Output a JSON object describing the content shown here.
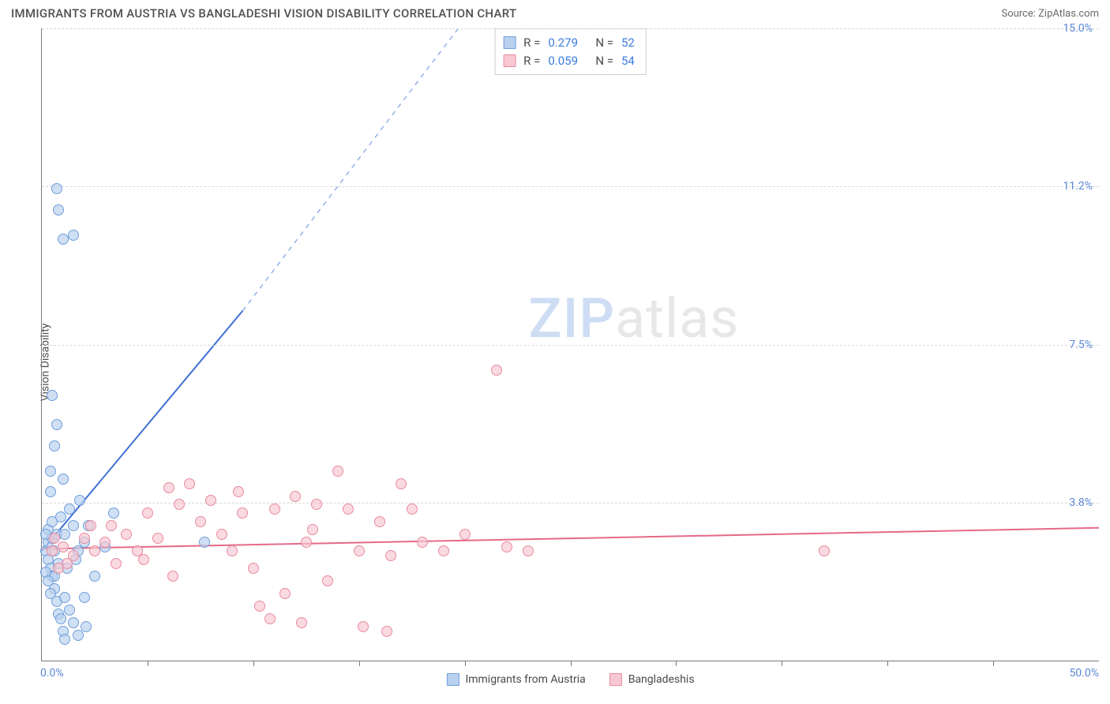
{
  "header": {
    "title": "IMMIGRANTS FROM AUSTRIA VS BANGLADESHI VISION DISABILITY CORRELATION CHART",
    "source": "Source: ZipAtlas.com"
  },
  "chart": {
    "type": "scatter",
    "ylabel": "Vision Disability",
    "watermark_bold": "ZIP",
    "watermark_rest": "atlas",
    "xlim": [
      0,
      50
    ],
    "ylim": [
      0,
      15
    ],
    "x_origin_label": "0.0%",
    "x_max_label": "50.0%",
    "y_ticks": [
      {
        "v": 3.75,
        "label": "3.8%"
      },
      {
        "v": 7.5,
        "label": "7.5%"
      },
      {
        "v": 11.25,
        "label": "11.2%"
      },
      {
        "v": 15.0,
        "label": "15.0%"
      }
    ],
    "x_tick_step": 5,
    "grid_color": "#d9d9d9",
    "background_color": "#ffffff",
    "series": [
      {
        "name": "Immigrants from Austria",
        "fill": "#b9d1ee",
        "stroke": "#6f9edb",
        "trend_color": "#3d6fd6",
        "trend": {
          "x1": 0,
          "y1": 2.6,
          "x2": 9.5,
          "y2": 8.3,
          "dash_to_x": 19.7,
          "dash_to_y": 15.0
        },
        "r_value": "0.279",
        "n_value": "52",
        "points": [
          [
            0.2,
            2.6
          ],
          [
            0.3,
            2.4
          ],
          [
            0.3,
            2.8
          ],
          [
            0.4,
            2.2
          ],
          [
            0.5,
            2.0
          ],
          [
            0.3,
            3.1
          ],
          [
            0.5,
            2.9
          ],
          [
            0.6,
            1.7
          ],
          [
            0.6,
            2.0
          ],
          [
            0.7,
            1.4
          ],
          [
            0.8,
            1.1
          ],
          [
            0.9,
            1.0
          ],
          [
            0.5,
            3.3
          ],
          [
            0.4,
            4.0
          ],
          [
            0.7,
            3.0
          ],
          [
            0.9,
            3.4
          ],
          [
            1.1,
            3.0
          ],
          [
            1.3,
            3.6
          ],
          [
            1.5,
            3.2
          ],
          [
            1.1,
            1.5
          ],
          [
            1.3,
            1.2
          ],
          [
            1.5,
            0.9
          ],
          [
            1.7,
            2.6
          ],
          [
            1.8,
            3.8
          ],
          [
            2.0,
            2.8
          ],
          [
            0.4,
            4.5
          ],
          [
            0.6,
            5.1
          ],
          [
            0.7,
            5.6
          ],
          [
            0.5,
            6.3
          ],
          [
            1.0,
            4.3
          ],
          [
            1.0,
            0.7
          ],
          [
            1.1,
            0.5
          ],
          [
            1.7,
            0.6
          ],
          [
            2.1,
            0.8
          ],
          [
            2.0,
            1.5
          ],
          [
            2.5,
            2.0
          ],
          [
            3.0,
            2.7
          ],
          [
            3.4,
            3.5
          ],
          [
            7.7,
            2.8
          ],
          [
            1.0,
            10.0
          ],
          [
            1.5,
            10.1
          ],
          [
            0.8,
            10.7
          ],
          [
            0.7,
            11.2
          ],
          [
            0.2,
            2.1
          ],
          [
            0.3,
            1.9
          ],
          [
            0.4,
            1.6
          ],
          [
            0.2,
            3.0
          ],
          [
            0.6,
            2.6
          ],
          [
            0.8,
            2.3
          ],
          [
            1.2,
            2.2
          ],
          [
            1.6,
            2.4
          ],
          [
            2.2,
            3.2
          ]
        ]
      },
      {
        "name": "Bangladeshis",
        "fill": "#f7c8d1",
        "stroke": "#e88aa0",
        "trend_color": "#e56a87",
        "trend": {
          "x1": 0,
          "y1": 2.65,
          "x2": 50,
          "y2": 3.15
        },
        "r_value": "0.059",
        "n_value": "54",
        "points": [
          [
            0.5,
            2.6
          ],
          [
            1.0,
            2.7
          ],
          [
            1.5,
            2.5
          ],
          [
            2.0,
            2.9
          ],
          [
            2.5,
            2.6
          ],
          [
            3.0,
            2.8
          ],
          [
            3.5,
            2.3
          ],
          [
            4.0,
            3.0
          ],
          [
            4.5,
            2.6
          ],
          [
            5.0,
            3.5
          ],
          [
            5.5,
            2.9
          ],
          [
            6.0,
            4.1
          ],
          [
            6.5,
            3.7
          ],
          [
            7.0,
            4.2
          ],
          [
            7.5,
            3.3
          ],
          [
            8.0,
            3.8
          ],
          [
            8.5,
            3.0
          ],
          [
            9.0,
            2.6
          ],
          [
            9.5,
            3.5
          ],
          [
            10.0,
            2.2
          ],
          [
            10.3,
            1.3
          ],
          [
            10.8,
            1.0
          ],
          [
            11.0,
            3.6
          ],
          [
            11.5,
            1.6
          ],
          [
            12.0,
            3.9
          ],
          [
            12.3,
            0.9
          ],
          [
            12.5,
            2.8
          ],
          [
            13.0,
            3.7
          ],
          [
            13.5,
            1.9
          ],
          [
            14.0,
            4.5
          ],
          [
            14.5,
            3.6
          ],
          [
            15.0,
            2.6
          ],
          [
            15.2,
            0.8
          ],
          [
            16.0,
            3.3
          ],
          [
            16.5,
            2.5
          ],
          [
            17.0,
            4.2
          ],
          [
            17.5,
            3.6
          ],
          [
            18.0,
            2.8
          ],
          [
            19.0,
            2.6
          ],
          [
            20.0,
            3.0
          ],
          [
            21.5,
            6.9
          ],
          [
            22.0,
            2.7
          ],
          [
            23.0,
            2.6
          ],
          [
            37.0,
            2.6
          ],
          [
            16.3,
            0.7
          ],
          [
            6.2,
            2.0
          ],
          [
            3.3,
            3.2
          ],
          [
            4.8,
            2.4
          ],
          [
            2.3,
            3.2
          ],
          [
            1.2,
            2.3
          ],
          [
            0.8,
            2.2
          ],
          [
            0.6,
            2.9
          ],
          [
            12.8,
            3.1
          ],
          [
            9.3,
            4.0
          ]
        ]
      }
    ],
    "legend_bottom": [
      {
        "label": "Immigrants from Austria",
        "fill": "#b9d1ee",
        "stroke": "#6f9edb"
      },
      {
        "label": "Bangladeshis",
        "fill": "#f7c8d1",
        "stroke": "#e88aa0"
      }
    ]
  }
}
